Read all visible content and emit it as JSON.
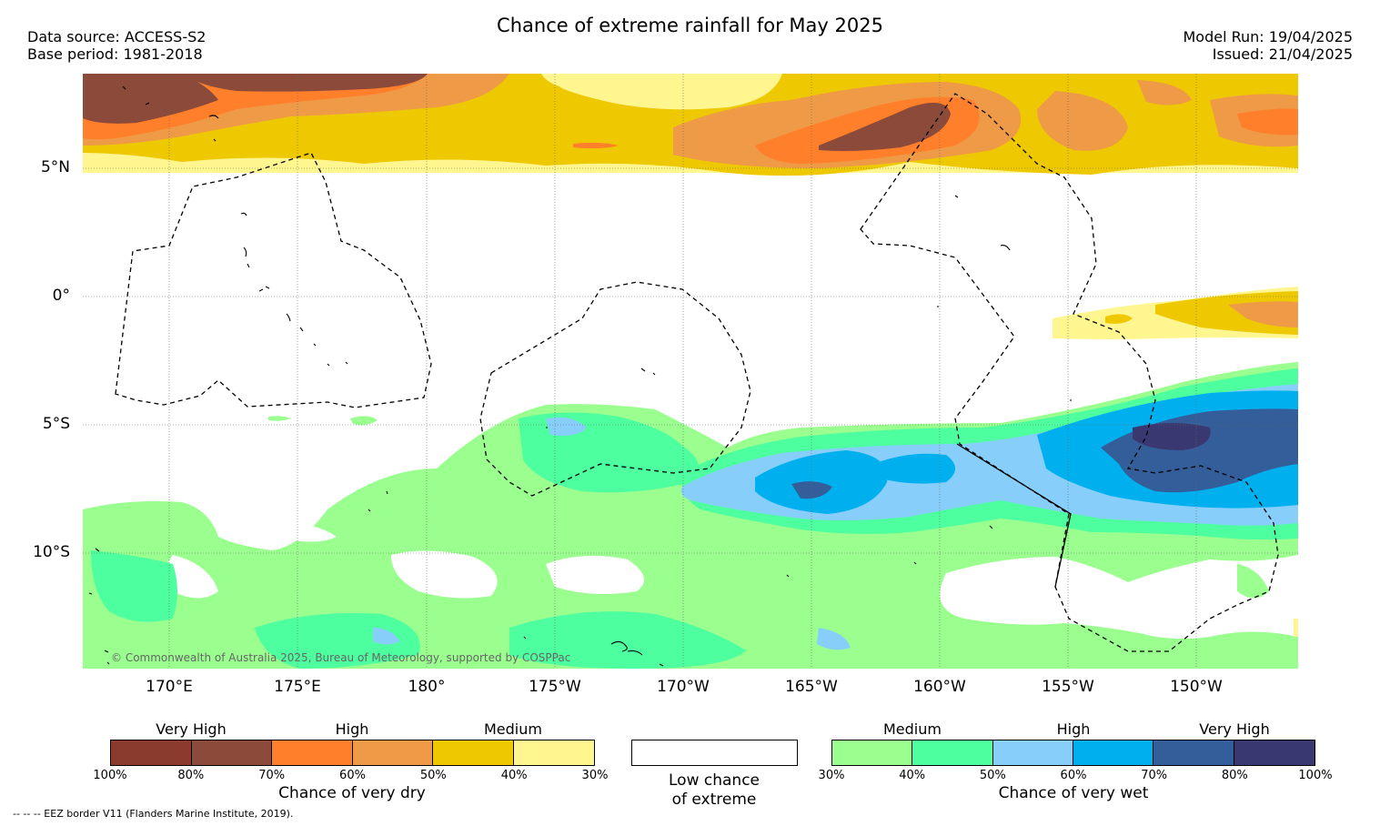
{
  "header": {
    "title": "Chance of extreme rainfall for May 2025",
    "data_source": "Data source: ACCESS-S2",
    "base_period": "Base period: 1981-2018",
    "model_run": "Model Run: 19/04/2025",
    "issued": "Issued: 21/04/2025"
  },
  "map": {
    "lat_labels": [
      "5°N",
      "0°",
      "5°S",
      "10°S"
    ],
    "lon_labels": [
      "170°E",
      "175°E",
      "180°",
      "175°W",
      "170°W",
      "165°W",
      "160°W",
      "155°W",
      "150°W"
    ],
    "copyright": "© Commonwealth of Australia 2025, Bureau of Meteorology, supported by COSPPac"
  },
  "legend_dry": {
    "headings": [
      "Very High",
      "High",
      "Medium"
    ],
    "ticks": [
      "100%",
      "80%",
      "70%",
      "60%",
      "50%",
      "40%",
      "30%"
    ],
    "caption": "Chance of very dry",
    "colors": [
      "#8b3a2e",
      "#8b4a3a",
      "#ff7f2a",
      "#ee9a47",
      "#eec800",
      "#fff68f"
    ]
  },
  "legend_low": {
    "caption_line1": "Low chance",
    "caption_line2": "of extreme"
  },
  "legend_wet": {
    "headings": [
      "Medium",
      "High",
      "Very High"
    ],
    "ticks": [
      "30%",
      "40%",
      "50%",
      "60%",
      "70%",
      "80%",
      "100%"
    ],
    "caption": "Chance of very wet",
    "colors": [
      "#9aff8f",
      "#4dff9f",
      "#87cefa",
      "#00b0ee",
      "#335e9a",
      "#3a3870"
    ]
  },
  "footnote": "--  --  -- EEZ border V11 (Flanders Marine Institute, 2019)."
}
